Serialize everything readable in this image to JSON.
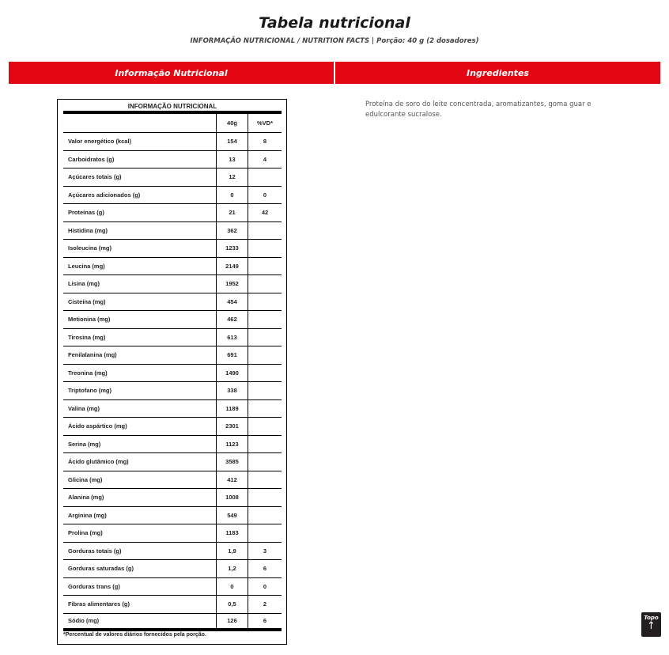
{
  "page": {
    "title": "Tabela nutricional",
    "subtitle": "INFORMAÇÃO NUTRICIONAL / NUTRITION FACTS | Porção: 40 g (2 dosadores)"
  },
  "tabs": [
    {
      "label": "Informação Nutricional"
    },
    {
      "label": "Ingredientes"
    }
  ],
  "colors": {
    "accent": "#e30613"
  },
  "table": {
    "title": "INFORMAÇÃO NUTRICIONAL",
    "headers": [
      "",
      "40g",
      "%VD*"
    ],
    "rows": [
      [
        "Valor energético (kcal)",
        "154",
        "8"
      ],
      [
        "Carboidratos (g)",
        "13",
        "4"
      ],
      [
        "Açúcares totais (g)",
        "12",
        ""
      ],
      [
        "Açúcares adicionados (g)",
        "0",
        "0"
      ],
      [
        "Proteínas (g)",
        "21",
        "42"
      ],
      [
        "Histidina (mg)",
        "362",
        ""
      ],
      [
        "Isoleucina (mg)",
        "1233",
        ""
      ],
      [
        "Leucina (mg)",
        "2149",
        ""
      ],
      [
        "Lisina (mg)",
        "1952",
        ""
      ],
      [
        "Cisteína (mg)",
        "454",
        ""
      ],
      [
        "Metionina (mg)",
        "462",
        ""
      ],
      [
        "Tirosina (mg)",
        "613",
        ""
      ],
      [
        "Fenilalanina (mg)",
        "691",
        ""
      ],
      [
        "Treonina (mg)",
        "1490",
        ""
      ],
      [
        "Triptofano (mg)",
        "338",
        ""
      ],
      [
        "Valina (mg)",
        "1189",
        ""
      ],
      [
        "Ácido aspártico (mg)",
        "2301",
        ""
      ],
      [
        "Serina (mg)",
        "1123",
        ""
      ],
      [
        "Ácido glutâmico (mg)",
        "3585",
        ""
      ],
      [
        "Glicina (mg)",
        "412",
        ""
      ],
      [
        "Alanina (mg)",
        "1008",
        ""
      ],
      [
        "Arginina (mg)",
        "549",
        ""
      ],
      [
        "Prolina (mg)",
        "1183",
        ""
      ],
      [
        "Gorduras totais (g)",
        "1,9",
        "3"
      ],
      [
        "Gorduras saturadas (g)",
        "1,2",
        "6"
      ],
      [
        "Gorduras trans (g)",
        "0",
        "0"
      ],
      [
        "Fibras alimentares (g)",
        "0,5",
        "2"
      ],
      [
        "Sódio (mg)",
        "126",
        "6"
      ]
    ],
    "footnote": "*Percentual de valores diários fornecidos pela porção."
  },
  "ingredients": "Proteína de soro do leite concentrada, aromatizantes, goma guar e edulcorante sucralose.",
  "back_to_top": {
    "label": "Topo",
    "icon": "arrow-up-icon"
  }
}
